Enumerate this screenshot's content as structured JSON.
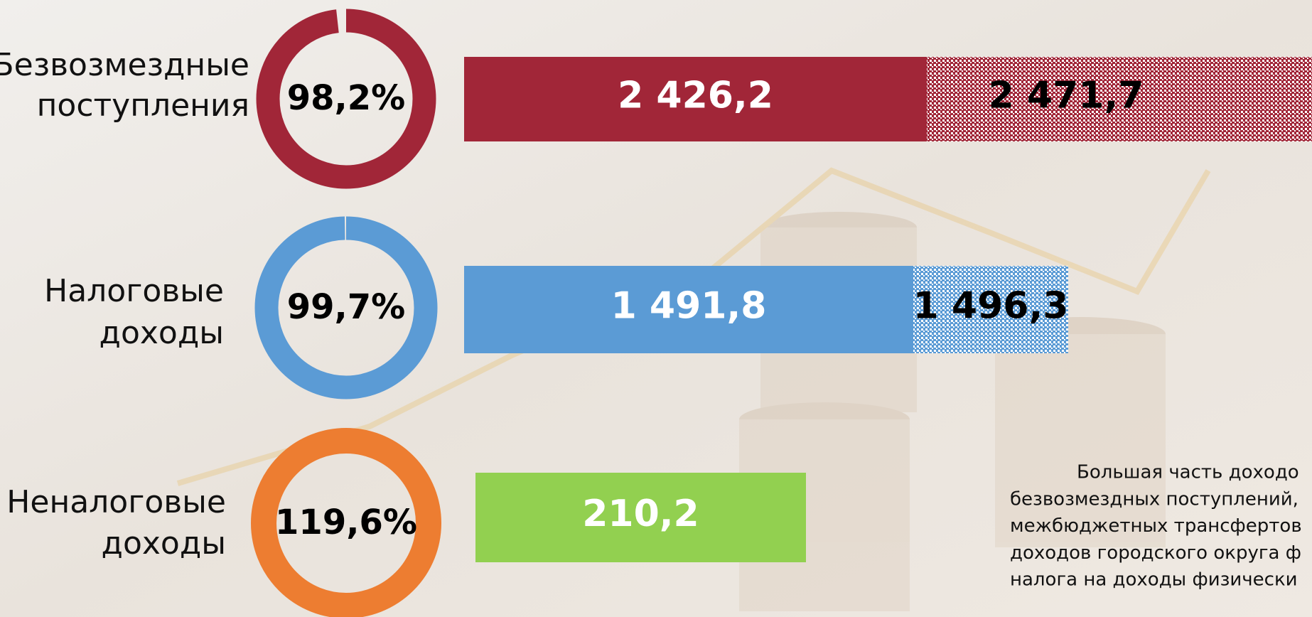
{
  "rows": [
    {
      "label": [
        "Безвозмездные",
        "поступления"
      ],
      "percent": 98.2,
      "percent_label": "98,2%",
      "color": "#a12638",
      "bar_color": "#a12638",
      "actual": "2 426,2",
      "plan": "2 471,7"
    },
    {
      "label": [
        "Налоговые",
        "доходы"
      ],
      "percent": 99.7,
      "percent_label": "99,7%",
      "color": "#5b9bd5",
      "bar_color": "#5b9bd5",
      "actual": "1 491,8",
      "plan": "1 496,3"
    },
    {
      "label": [
        "Неналоговые",
        "доходы"
      ],
      "percent": 119.6,
      "percent_label": "119,6%",
      "color": "#ed7d31",
      "bar_color": "#92d050",
      "actual": "210,2"
    }
  ],
  "note": [
    "Большая часть доходо",
    "безвозмездных поступлений,",
    "межбюджетных трансфертов",
    "доходов городского округа ф",
    "налога на доходы физически"
  ]
}
